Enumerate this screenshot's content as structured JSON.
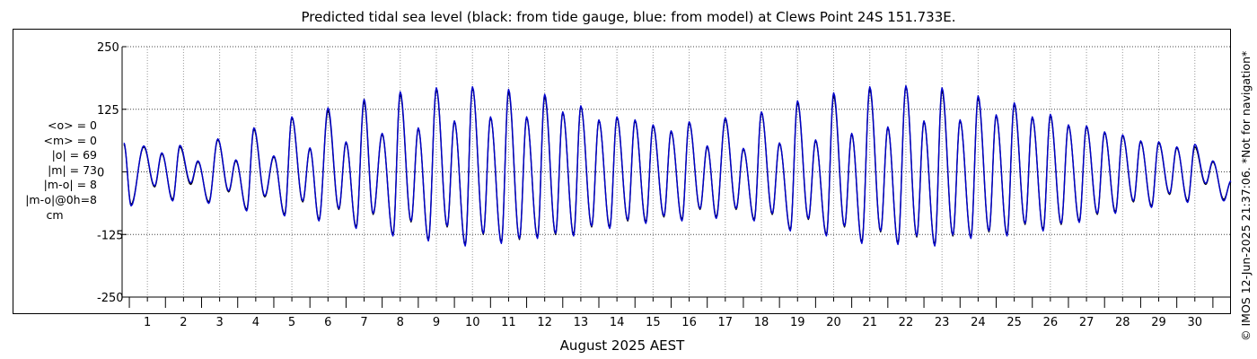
{
  "chart_data": {
    "type": "line",
    "title": "Predicted tidal sea level (black: from tide gauge, blue: from model) at Clews Point 24S 151.733E.",
    "xlabel": "August 2025 AEST",
    "ylabel": "cm",
    "ylim": [
      -250,
      250
    ],
    "xlim": [
      0.3,
      31.0
    ],
    "yticks": [
      250,
      125,
      0,
      -125,
      -250
    ],
    "yticklabels": [
      "250",
      "125",
      "0",
      "-125",
      "-250"
    ],
    "xticks": [
      1,
      2,
      3,
      4,
      5,
      6,
      7,
      8,
      9,
      10,
      11,
      12,
      13,
      14,
      15,
      16,
      17,
      18,
      19,
      20,
      21,
      22,
      23,
      24,
      25,
      26,
      27,
      28,
      29,
      30
    ],
    "xticklabels": [
      "1",
      "2",
      "3",
      "4",
      "5",
      "6",
      "7",
      "8",
      "9",
      "10",
      "11",
      "12",
      "13",
      "14",
      "15",
      "16",
      "17",
      "18",
      "19",
      "20",
      "21",
      "22",
      "23",
      "24",
      "25",
      "26",
      "27",
      "28",
      "29",
      "30"
    ],
    "grid": true,
    "series": [
      {
        "name": "tide gauge",
        "color": "#000000",
        "extrema": [
          [
            0.35,
            55
          ],
          [
            0.55,
            -65
          ],
          [
            0.9,
            50
          ],
          [
            1.2,
            -30
          ],
          [
            1.4,
            36
          ],
          [
            1.7,
            -55
          ],
          [
            1.9,
            50
          ],
          [
            2.2,
            -25
          ],
          [
            2.4,
            20
          ],
          [
            2.7,
            -60
          ],
          [
            2.95,
            64
          ],
          [
            3.25,
            -40
          ],
          [
            3.45,
            22
          ],
          [
            3.75,
            -75
          ],
          [
            3.95,
            85
          ],
          [
            4.25,
            -50
          ],
          [
            4.5,
            30
          ],
          [
            4.8,
            -85
          ],
          [
            5.0,
            108
          ],
          [
            5.3,
            -60
          ],
          [
            5.5,
            46
          ],
          [
            5.75,
            -95
          ],
          [
            6.0,
            122
          ],
          [
            6.3,
            -75
          ],
          [
            6.5,
            58
          ],
          [
            6.78,
            -110
          ],
          [
            7.0,
            140
          ],
          [
            7.25,
            -85
          ],
          [
            7.5,
            75
          ],
          [
            7.8,
            -125
          ],
          [
            8.0,
            155
          ],
          [
            8.3,
            -100
          ],
          [
            8.5,
            86
          ],
          [
            8.78,
            -135
          ],
          [
            9.0,
            165
          ],
          [
            9.3,
            -110
          ],
          [
            9.5,
            100
          ],
          [
            9.8,
            -145
          ],
          [
            10.0,
            168
          ],
          [
            10.3,
            -125
          ],
          [
            10.5,
            108
          ],
          [
            10.8,
            -140
          ],
          [
            11.0,
            160
          ],
          [
            11.3,
            -135
          ],
          [
            11.5,
            108
          ],
          [
            11.8,
            -130
          ],
          [
            12.0,
            150
          ],
          [
            12.3,
            -125
          ],
          [
            12.5,
            118
          ],
          [
            12.8,
            -125
          ],
          [
            13.0,
            130
          ],
          [
            13.3,
            -110
          ],
          [
            13.5,
            102
          ],
          [
            13.8,
            -110
          ],
          [
            14.0,
            108
          ],
          [
            14.3,
            -98
          ],
          [
            14.5,
            102
          ],
          [
            14.8,
            -100
          ],
          [
            15.0,
            92
          ],
          [
            15.3,
            -90
          ],
          [
            15.5,
            80
          ],
          [
            15.8,
            -95
          ],
          [
            16.0,
            98
          ],
          [
            16.3,
            -75
          ],
          [
            16.5,
            50
          ],
          [
            16.75,
            -90
          ],
          [
            17.0,
            105
          ],
          [
            17.3,
            -75
          ],
          [
            17.5,
            45
          ],
          [
            17.8,
            -95
          ],
          [
            18.0,
            118
          ],
          [
            18.3,
            -85
          ],
          [
            18.5,
            56
          ],
          [
            18.8,
            -115
          ],
          [
            19.0,
            138
          ],
          [
            19.3,
            -95
          ],
          [
            19.5,
            62
          ],
          [
            19.8,
            -125
          ],
          [
            20.0,
            152
          ],
          [
            20.3,
            -110
          ],
          [
            20.5,
            75
          ],
          [
            20.78,
            -140
          ],
          [
            21.0,
            165
          ],
          [
            21.3,
            -120
          ],
          [
            21.5,
            88
          ],
          [
            21.78,
            -142
          ],
          [
            22.0,
            170
          ],
          [
            22.3,
            -130
          ],
          [
            22.5,
            100
          ],
          [
            22.8,
            -145
          ],
          [
            23.0,
            162
          ],
          [
            23.3,
            -128
          ],
          [
            23.5,
            102
          ],
          [
            23.8,
            -130
          ],
          [
            24.0,
            148
          ],
          [
            24.3,
            -120
          ],
          [
            24.5,
            112
          ],
          [
            24.8,
            -125
          ],
          [
            25.0,
            135
          ],
          [
            25.3,
            -105
          ],
          [
            25.5,
            108
          ],
          [
            25.8,
            -115
          ],
          [
            26.0,
            112
          ],
          [
            26.3,
            -105
          ],
          [
            26.5,
            92
          ],
          [
            26.8,
            -98
          ],
          [
            27.0,
            90
          ],
          [
            27.3,
            -85
          ],
          [
            27.5,
            78
          ],
          [
            27.8,
            -80
          ],
          [
            28.0,
            72
          ],
          [
            28.3,
            -60
          ],
          [
            28.5,
            60
          ],
          [
            28.8,
            -68
          ],
          [
            29.0,
            58
          ],
          [
            29.3,
            -45
          ],
          [
            29.5,
            48
          ],
          [
            29.8,
            -58
          ],
          [
            30.0,
            50
          ],
          [
            30.3,
            -25
          ],
          [
            30.5,
            20
          ],
          [
            30.8,
            -55
          ],
          [
            31.0,
            -20
          ]
        ]
      },
      {
        "name": "model",
        "color": "#0000cc",
        "extrema": [
          [
            0.35,
            58
          ],
          [
            0.55,
            -68
          ],
          [
            0.9,
            52
          ],
          [
            1.2,
            -28
          ],
          [
            1.4,
            38
          ],
          [
            1.7,
            -58
          ],
          [
            1.9,
            53
          ],
          [
            2.2,
            -22
          ],
          [
            2.4,
            22
          ],
          [
            2.7,
            -63
          ],
          [
            2.95,
            66
          ],
          [
            3.25,
            -38
          ],
          [
            3.45,
            24
          ],
          [
            3.75,
            -78
          ],
          [
            3.95,
            88
          ],
          [
            4.25,
            -48
          ],
          [
            4.5,
            32
          ],
          [
            4.8,
            -88
          ],
          [
            5.0,
            110
          ],
          [
            5.3,
            -58
          ],
          [
            5.5,
            48
          ],
          [
            5.75,
            -98
          ],
          [
            6.0,
            128
          ],
          [
            6.3,
            -73
          ],
          [
            6.5,
            60
          ],
          [
            6.78,
            -113
          ],
          [
            7.0,
            145
          ],
          [
            7.25,
            -83
          ],
          [
            7.5,
            77
          ],
          [
            7.8,
            -128
          ],
          [
            8.0,
            160
          ],
          [
            8.3,
            -98
          ],
          [
            8.5,
            88
          ],
          [
            8.78,
            -138
          ],
          [
            9.0,
            168
          ],
          [
            9.3,
            -108
          ],
          [
            9.5,
            102
          ],
          [
            9.8,
            -148
          ],
          [
            10.0,
            170
          ],
          [
            10.3,
            -123
          ],
          [
            10.5,
            110
          ],
          [
            10.8,
            -143
          ],
          [
            11.0,
            165
          ],
          [
            11.3,
            -133
          ],
          [
            11.5,
            110
          ],
          [
            11.8,
            -133
          ],
          [
            12.0,
            155
          ],
          [
            12.3,
            -123
          ],
          [
            12.5,
            120
          ],
          [
            12.8,
            -128
          ],
          [
            13.0,
            132
          ],
          [
            13.3,
            -108
          ],
          [
            13.5,
            104
          ],
          [
            13.8,
            -113
          ],
          [
            14.0,
            110
          ],
          [
            14.3,
            -96
          ],
          [
            14.5,
            104
          ],
          [
            14.8,
            -103
          ],
          [
            15.0,
            94
          ],
          [
            15.3,
            -88
          ],
          [
            15.5,
            82
          ],
          [
            15.8,
            -98
          ],
          [
            16.0,
            100
          ],
          [
            16.3,
            -73
          ],
          [
            16.5,
            52
          ],
          [
            16.75,
            -93
          ],
          [
            17.0,
            108
          ],
          [
            17.3,
            -73
          ],
          [
            17.5,
            47
          ],
          [
            17.8,
            -98
          ],
          [
            18.0,
            120
          ],
          [
            18.3,
            -83
          ],
          [
            18.5,
            58
          ],
          [
            18.8,
            -118
          ],
          [
            19.0,
            142
          ],
          [
            19.3,
            -93
          ],
          [
            19.5,
            64
          ],
          [
            19.8,
            -128
          ],
          [
            20.0,
            158
          ],
          [
            20.3,
            -108
          ],
          [
            20.5,
            77
          ],
          [
            20.78,
            -143
          ],
          [
            21.0,
            170
          ],
          [
            21.3,
            -118
          ],
          [
            21.5,
            90
          ],
          [
            21.78,
            -145
          ],
          [
            22.0,
            172
          ],
          [
            22.3,
            -128
          ],
          [
            22.5,
            102
          ],
          [
            22.8,
            -148
          ],
          [
            23.0,
            168
          ],
          [
            23.3,
            -126
          ],
          [
            23.5,
            104
          ],
          [
            23.8,
            -133
          ],
          [
            24.0,
            152
          ],
          [
            24.3,
            -118
          ],
          [
            24.5,
            114
          ],
          [
            24.8,
            -128
          ],
          [
            25.0,
            138
          ],
          [
            25.3,
            -103
          ],
          [
            25.5,
            110
          ],
          [
            25.8,
            -118
          ],
          [
            26.0,
            115
          ],
          [
            26.3,
            -103
          ],
          [
            26.5,
            94
          ],
          [
            26.8,
            -101
          ],
          [
            27.0,
            92
          ],
          [
            27.3,
            -83
          ],
          [
            27.5,
            80
          ],
          [
            27.8,
            -83
          ],
          [
            28.0,
            74
          ],
          [
            28.3,
            -58
          ],
          [
            28.5,
            62
          ],
          [
            28.8,
            -71
          ],
          [
            29.0,
            60
          ],
          [
            29.3,
            -43
          ],
          [
            29.5,
            50
          ],
          [
            29.8,
            -61
          ],
          [
            30.0,
            55
          ],
          [
            30.3,
            -23
          ],
          [
            30.5,
            22
          ],
          [
            30.8,
            -58
          ],
          [
            31.0,
            -18
          ]
        ]
      }
    ]
  },
  "stats": {
    "o_mean": "<o> = 0",
    "m_mean": "<m> = 0",
    "o_abs": "|o| = 69",
    "m_abs": "|m| = 73",
    "mo_abs": "|m-o| = 8",
    "mo_0h": "|m-o|@0h=8",
    "unit": "cm"
  },
  "watermark": "© IMOS 12-Jun-2025 21:37:06. *Not for navigation*"
}
